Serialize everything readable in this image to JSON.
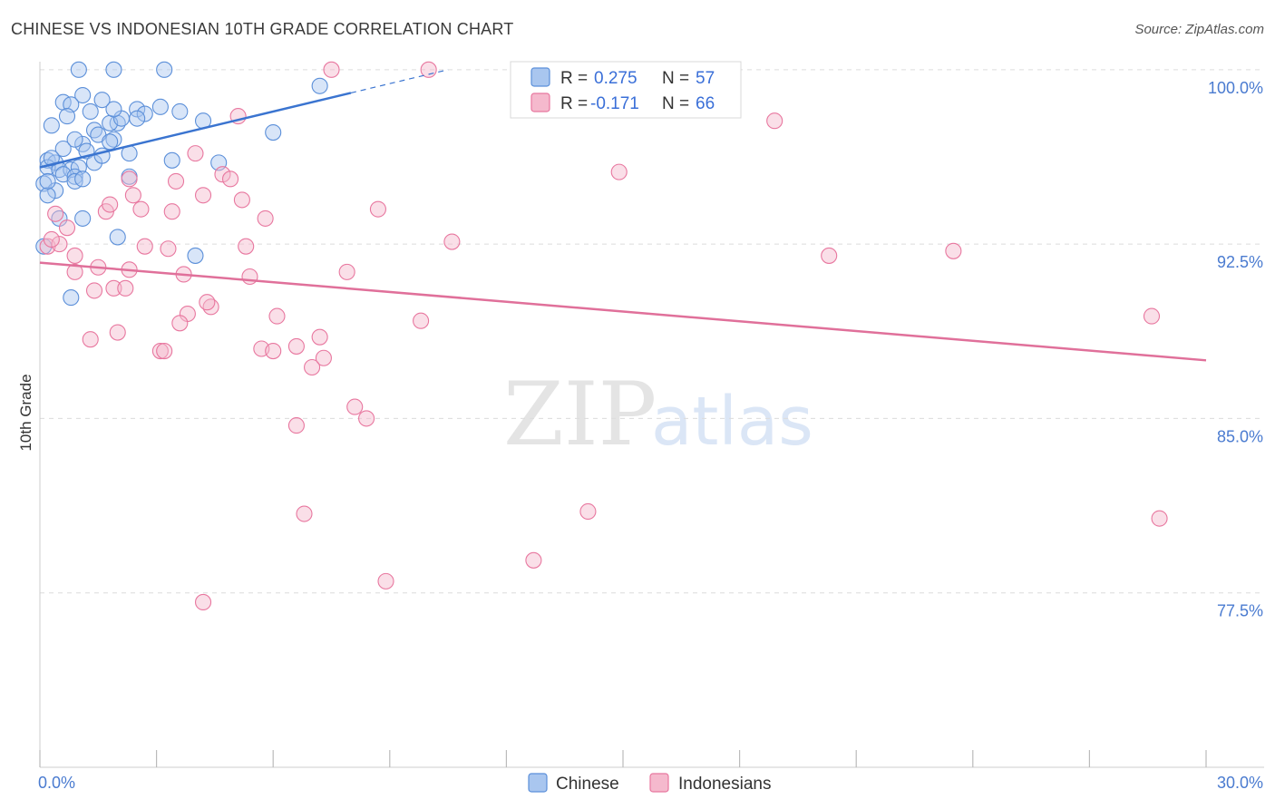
{
  "title": "CHINESE VS INDONESIAN 10TH GRADE CORRELATION CHART",
  "source": "Source: ZipAtlas.com",
  "watermark": {
    "part1": "ZIP",
    "part2": "atlas"
  },
  "chart_data": {
    "type": "scatter",
    "ylabel": "10th Grade",
    "xlim": [
      0,
      30
    ],
    "ylim": [
      70,
      100.5
    ],
    "x_tick_labels": [
      "0.0%",
      "30.0%"
    ],
    "y_ticks": [
      100,
      92.5,
      85,
      77.5
    ],
    "y_tick_labels": [
      "100.0%",
      "92.5%",
      "85.0%",
      "77.5%"
    ],
    "grid": true,
    "legend": {
      "position": "top-center",
      "rows": [
        {
          "r_label": "R =",
          "r_value": "0.275",
          "n_label": "N =",
          "n_value": "57"
        },
        {
          "r_label": "R =",
          "r_value": "-0.171",
          "n_label": "N =",
          "n_value": "66"
        }
      ]
    },
    "series": [
      {
        "name": "Chinese",
        "color": "#5b8fd9",
        "fill": "#a9c6ef",
        "trend": {
          "x": [
            0,
            8
          ],
          "y": [
            95.8,
            99.0
          ],
          "dashed_to": [
            10.5,
            100.0
          ]
        },
        "points": [
          [
            1.0,
            100
          ],
          [
            1.9,
            100
          ],
          [
            3.2,
            100
          ],
          [
            0.6,
            98.6
          ],
          [
            1.1,
            98.9
          ],
          [
            1.3,
            98.2
          ],
          [
            0.8,
            98.5
          ],
          [
            2.5,
            98.3
          ],
          [
            3.1,
            98.4
          ],
          [
            3.6,
            98.2
          ],
          [
            0.3,
            97.6
          ],
          [
            0.7,
            98.0
          ],
          [
            1.4,
            97.4
          ],
          [
            2.0,
            97.7
          ],
          [
            1.8,
            97.7
          ],
          [
            2.1,
            97.9
          ],
          [
            2.7,
            98.1
          ],
          [
            4.2,
            97.8
          ],
          [
            1.5,
            97.2
          ],
          [
            6.0,
            97.3
          ],
          [
            7.2,
            99.3
          ],
          [
            1.1,
            96.8
          ],
          [
            0.6,
            96.6
          ],
          [
            1.2,
            96.5
          ],
          [
            1.9,
            97.0
          ],
          [
            2.3,
            96.4
          ],
          [
            0.2,
            96.1
          ],
          [
            0.4,
            96.0
          ],
          [
            0.2,
            95.8
          ],
          [
            0.5,
            95.7
          ],
          [
            0.8,
            95.7
          ],
          [
            1.0,
            95.8
          ],
          [
            1.4,
            96.0
          ],
          [
            0.6,
            95.5
          ],
          [
            0.9,
            95.4
          ],
          [
            2.3,
            95.4
          ],
          [
            3.4,
            96.1
          ],
          [
            4.6,
            96.0
          ],
          [
            0.1,
            95.1
          ],
          [
            0.4,
            94.8
          ],
          [
            0.2,
            94.6
          ],
          [
            0.9,
            95.2
          ],
          [
            1.1,
            95.3
          ],
          [
            0.5,
            93.6
          ],
          [
            1.1,
            93.6
          ],
          [
            2.0,
            92.8
          ],
          [
            4.0,
            92.0
          ],
          [
            0.1,
            92.4
          ],
          [
            0.8,
            90.2
          ],
          [
            1.8,
            96.9
          ],
          [
            1.6,
            96.3
          ],
          [
            1.9,
            98.3
          ],
          [
            0.9,
            97.0
          ],
          [
            2.5,
            97.9
          ],
          [
            0.3,
            96.2
          ],
          [
            0.2,
            95.2
          ],
          [
            1.6,
            98.7
          ]
        ]
      },
      {
        "name": "Indonesians",
        "color": "#e8779f",
        "fill": "#f5b9cd",
        "trend": {
          "x": [
            0,
            30
          ],
          "y": [
            91.7,
            87.5
          ]
        },
        "points": [
          [
            7.5,
            100
          ],
          [
            10.0,
            100
          ],
          [
            5.1,
            98.0
          ],
          [
            18.9,
            97.8
          ],
          [
            4.0,
            96.4
          ],
          [
            14.9,
            95.6
          ],
          [
            2.3,
            95.3
          ],
          [
            4.7,
            95.5
          ],
          [
            4.9,
            95.3
          ],
          [
            3.5,
            95.2
          ],
          [
            2.4,
            94.6
          ],
          [
            2.6,
            94.0
          ],
          [
            1.7,
            93.9
          ],
          [
            3.4,
            93.9
          ],
          [
            8.7,
            94.0
          ],
          [
            4.2,
            94.6
          ],
          [
            5.2,
            94.4
          ],
          [
            5.8,
            93.6
          ],
          [
            0.4,
            93.8
          ],
          [
            0.7,
            93.2
          ],
          [
            0.2,
            92.4
          ],
          [
            0.5,
            92.5
          ],
          [
            0.3,
            92.7
          ],
          [
            2.7,
            92.4
          ],
          [
            3.3,
            92.3
          ],
          [
            5.3,
            92.4
          ],
          [
            10.6,
            92.6
          ],
          [
            20.3,
            92.0
          ],
          [
            23.5,
            92.2
          ],
          [
            0.9,
            92.0
          ],
          [
            1.5,
            91.5
          ],
          [
            2.3,
            91.4
          ],
          [
            3.7,
            91.2
          ],
          [
            5.4,
            91.1
          ],
          [
            7.9,
            91.3
          ],
          [
            0.9,
            91.3
          ],
          [
            1.4,
            90.5
          ],
          [
            1.9,
            90.6
          ],
          [
            2.2,
            90.6
          ],
          [
            4.4,
            89.8
          ],
          [
            4.3,
            90.0
          ],
          [
            3.8,
            89.5
          ],
          [
            6.1,
            89.4
          ],
          [
            3.6,
            89.1
          ],
          [
            9.8,
            89.2
          ],
          [
            28.6,
            89.4
          ],
          [
            2.0,
            88.7
          ],
          [
            1.3,
            88.4
          ],
          [
            6.6,
            88.1
          ],
          [
            7.2,
            88.5
          ],
          [
            3.1,
            87.9
          ],
          [
            3.2,
            87.9
          ],
          [
            5.7,
            88.0
          ],
          [
            6.0,
            87.9
          ],
          [
            7.3,
            87.6
          ],
          [
            7.0,
            87.2
          ],
          [
            8.1,
            85.5
          ],
          [
            8.4,
            85.0
          ],
          [
            6.6,
            84.7
          ],
          [
            6.8,
            80.9
          ],
          [
            14.1,
            81.0
          ],
          [
            28.8,
            80.7
          ],
          [
            12.7,
            78.9
          ],
          [
            8.9,
            78.0
          ],
          [
            4.2,
            77.1
          ],
          [
            1.8,
            94.2
          ]
        ]
      }
    ]
  }
}
